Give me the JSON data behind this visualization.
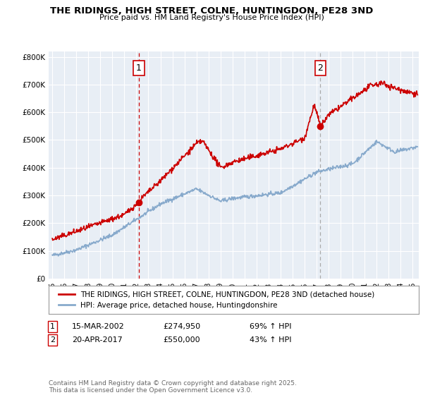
{
  "title": "THE RIDINGS, HIGH STREET, COLNE, HUNTINGDON, PE28 3ND",
  "subtitle": "Price paid vs. HM Land Registry's House Price Index (HPI)",
  "ylabel_ticks": [
    "£0",
    "£100K",
    "£200K",
    "£300K",
    "£400K",
    "£500K",
    "£600K",
    "£700K",
    "£800K"
  ],
  "ytick_values": [
    0,
    100000,
    200000,
    300000,
    400000,
    500000,
    600000,
    700000,
    800000
  ],
  "ylim": [
    0,
    820000
  ],
  "xlim_start": 1994.7,
  "xlim_end": 2025.5,
  "red_line_color": "#cc0000",
  "blue_line_color": "#88aacc",
  "chart_bg_color": "#e8eef5",
  "bg_color": "#ffffff",
  "vline1_color": "#cc0000",
  "vline2_color": "#aaaaaa",
  "grid_color": "#ffffff",
  "marker1_x": 2002.21,
  "marker1_y": 274950,
  "marker2_x": 2017.31,
  "marker2_y": 550000,
  "legend_label_red": "THE RIDINGS, HIGH STREET, COLNE, HUNTINGDON, PE28 3ND (detached house)",
  "legend_label_blue": "HPI: Average price, detached house, Huntingdonshire",
  "table_row1": [
    "1",
    "15-MAR-2002",
    "£274,950",
    "69% ↑ HPI"
  ],
  "table_row2": [
    "2",
    "20-APR-2017",
    "£550,000",
    "43% ↑ HPI"
  ],
  "footer": "Contains HM Land Registry data © Crown copyright and database right 2025.\nThis data is licensed under the Open Government Licence v3.0.",
  "xtick_years": [
    1995,
    1996,
    1997,
    1998,
    1999,
    2000,
    2001,
    2002,
    2003,
    2004,
    2005,
    2006,
    2007,
    2008,
    2009,
    2010,
    2011,
    2012,
    2013,
    2014,
    2015,
    2016,
    2017,
    2018,
    2019,
    2020,
    2021,
    2022,
    2023,
    2024,
    2025
  ]
}
